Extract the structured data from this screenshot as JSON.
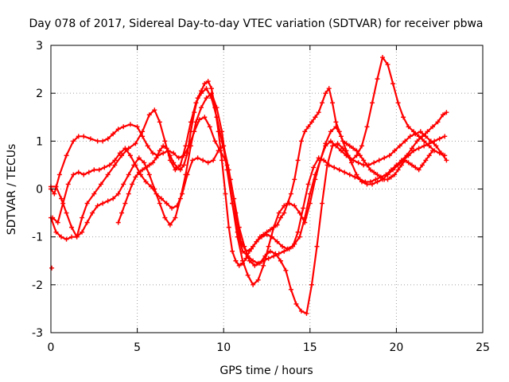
{
  "chart_data": {
    "type": "scatter",
    "title": "Day 078 of 2017, Sidereal Day-to-day VTEC variation (SDTVAR) for receiver pbwa",
    "xlabel": "GPS time / hours",
    "ylabel": "SDTVAR / TECUs",
    "xlim": [
      0,
      25
    ],
    "ylim": [
      -3,
      3
    ],
    "xticks": [
      0,
      5,
      10,
      15,
      20,
      25
    ],
    "yticks": [
      -3,
      -2,
      -1,
      0,
      1,
      2,
      3
    ],
    "xtick_labels": [
      "0",
      "5",
      "10",
      "15",
      "20",
      "25"
    ],
    "ytick_labels": [
      "-3",
      "-2",
      "-1",
      "0",
      "1",
      "2",
      "3"
    ],
    "grid": true,
    "legend": "none",
    "marker": "+",
    "color": "#ff0000",
    "series": [
      {
        "x": [
          0.0,
          0.2,
          0.5,
          0.9,
          1.3,
          1.6,
          1.9,
          2.3,
          2.7,
          3.0,
          3.3,
          3.6,
          3.9,
          4.2,
          4.6,
          5.0,
          5.3,
          5.6,
          5.9,
          6.2,
          6.5,
          6.8,
          7.1,
          7.4,
          7.7,
          8.0,
          8.3,
          8.6,
          8.9,
          9.2,
          9.5,
          9.8,
          10.1,
          10.4,
          10.7,
          11.0,
          11.3,
          11.6,
          11.9,
          12.2,
          12.5,
          12.8,
          13.1,
          13.4,
          13.7,
          14.0,
          14.3,
          14.6,
          14.9,
          15.2,
          15.5,
          15.8,
          16.1,
          16.4,
          16.7,
          17.0,
          17.3,
          17.6,
          17.9,
          18.2,
          18.5,
          18.8,
          19.1,
          19.4,
          19.7,
          20.0,
          20.3,
          20.6,
          20.9,
          21.2,
          21.5,
          21.8,
          22.1,
          22.4,
          22.7,
          22.9
        ],
        "y": [
          0.0,
          -0.1,
          0.3,
          0.7,
          1.0,
          1.1,
          1.1,
          1.05,
          1.0,
          1.0,
          1.05,
          1.15,
          1.25,
          1.3,
          1.35,
          1.3,
          1.1,
          0.9,
          0.75,
          0.7,
          0.75,
          0.8,
          0.75,
          0.65,
          0.7,
          0.9,
          1.2,
          1.45,
          1.5,
          1.3,
          1.0,
          0.8,
          0.6,
          0.2,
          -0.5,
          -1.1,
          -1.3,
          -1.25,
          -1.1,
          -1.0,
          -0.95,
          -1.0,
          -1.1,
          -1.2,
          -1.25,
          -1.2,
          -0.9,
          -0.4,
          0.1,
          0.45,
          0.65,
          0.6,
          0.5,
          0.45,
          0.4,
          0.35,
          0.3,
          0.25,
          0.2,
          0.15,
          0.15,
          0.2,
          0.25,
          0.3,
          0.4,
          0.5,
          0.6,
          0.7,
          0.85,
          1.0,
          1.1,
          1.2,
          1.3,
          1.4,
          1.55,
          1.6
        ]
      },
      {
        "x": [
          0.0,
          0.3,
          0.6,
          0.9,
          1.2,
          1.5,
          1.8,
          2.1,
          2.5,
          2.9,
          3.3,
          3.7,
          4.1,
          4.5,
          4.9,
          5.3,
          5.7,
          6.0,
          6.3,
          6.6,
          6.9,
          7.2,
          7.5,
          7.8,
          8.1,
          8.4,
          8.7,
          9.0,
          9.3,
          9.6,
          9.9,
          10.2,
          10.5,
          10.8,
          11.1,
          11.4,
          11.7,
          12.0,
          12.3,
          12.6,
          12.9,
          13.2,
          13.5,
          13.8,
          14.1,
          14.4,
          14.7,
          15.0,
          15.3,
          15.6,
          15.9,
          16.2,
          16.5,
          16.8,
          17.1,
          17.4,
          17.7,
          18.0,
          18.3,
          18.6,
          18.9,
          19.2,
          19.5,
          19.8,
          20.1,
          20.4,
          20.7,
          21.0,
          21.3,
          21.6,
          21.9,
          22.2,
          22.5,
          22.8
        ],
        "y": [
          -0.6,
          -0.9,
          -1.0,
          -1.05,
          -1.0,
          -1.0,
          -0.6,
          -0.3,
          -0.1,
          0.1,
          0.3,
          0.5,
          0.7,
          0.85,
          0.95,
          1.2,
          1.55,
          1.65,
          1.4,
          1.0,
          0.6,
          0.4,
          0.5,
          0.9,
          1.4,
          1.8,
          2.0,
          2.1,
          1.9,
          1.5,
          1.0,
          0.5,
          -0.3,
          -0.9,
          -1.3,
          -1.4,
          -1.5,
          -1.55,
          -1.5,
          -1.45,
          -1.4,
          -1.35,
          -1.3,
          -1.25,
          -1.15,
          -1.0,
          -0.6,
          -0.1,
          0.3,
          0.6,
          0.9,
          1.0,
          0.9,
          0.8,
          0.7,
          0.6,
          0.7,
          0.9,
          1.3,
          1.8,
          2.3,
          2.75,
          2.6,
          2.2,
          1.8,
          1.5,
          1.3,
          1.2,
          1.1,
          1.0,
          0.9,
          0.8,
          0.75,
          0.7
        ]
      },
      {
        "x": [
          0.0,
          0.3,
          0.6,
          0.9,
          1.2,
          1.5,
          1.8,
          2.1,
          2.4,
          2.7,
          3.0,
          3.3,
          3.6,
          3.9,
          4.2,
          4.5,
          4.8,
          5.1,
          5.4,
          5.7,
          6.0,
          6.3,
          6.6,
          6.9,
          7.2,
          7.5,
          7.8,
          8.1,
          8.4,
          8.7,
          9.0,
          9.3,
          9.6,
          9.9,
          10.2,
          10.5,
          10.8,
          11.1,
          11.4,
          11.7,
          12.0,
          12.3,
          12.6,
          12.9,
          13.2,
          13.5,
          13.8,
          14.1,
          14.4,
          14.7,
          15.0,
          15.3,
          15.6,
          15.9,
          16.2,
          16.5,
          16.8,
          17.1,
          17.4,
          17.7,
          18.0,
          18.3,
          18.6,
          18.9,
          19.2,
          19.5,
          19.8,
          20.1,
          20.4,
          20.7,
          21.0,
          21.3,
          21.6,
          21.9,
          22.2,
          22.5,
          22.8
        ],
        "y": [
          0.05,
          0.05,
          -0.2,
          -0.5,
          -0.8,
          -1.0,
          -0.9,
          -0.7,
          -0.5,
          -0.35,
          -0.3,
          -0.25,
          -0.2,
          -0.1,
          0.1,
          0.3,
          0.5,
          0.65,
          0.55,
          0.3,
          0.0,
          -0.3,
          -0.6,
          -0.75,
          -0.6,
          -0.2,
          0.3,
          0.9,
          1.4,
          1.7,
          1.9,
          2.0,
          1.7,
          1.2,
          0.4,
          -0.3,
          -1.0,
          -1.5,
          -1.8,
          -2.0,
          -1.9,
          -1.6,
          -1.2,
          -0.8,
          -0.5,
          -0.35,
          -0.3,
          -0.35,
          -0.5,
          -0.7,
          -0.3,
          0.2,
          0.6,
          0.95,
          1.2,
          1.3,
          1.1,
          0.8,
          0.55,
          0.3,
          0.15,
          0.1,
          0.1,
          0.15,
          0.2,
          0.3,
          0.4,
          0.5,
          0.6,
          0.7,
          0.8,
          0.85,
          0.9,
          0.95,
          1.0,
          1.05,
          1.1
        ]
      },
      {
        "x": [
          0.1,
          0.4,
          0.7,
          1.0,
          1.3,
          1.6,
          1.9,
          2.2,
          2.5,
          2.8,
          3.1,
          3.4,
          3.7,
          4.0,
          4.3,
          4.6,
          4.9,
          5.2,
          5.5,
          5.8,
          6.1,
          6.4,
          6.7,
          7.0,
          7.3,
          7.6,
          7.9,
          8.2,
          8.5,
          8.8,
          9.1,
          9.4,
          9.7,
          10.0,
          10.3,
          10.6,
          10.9,
          11.2,
          11.5,
          11.8,
          12.1,
          12.4,
          12.7,
          13.0,
          13.3,
          13.6,
          13.9,
          14.2,
          14.5,
          14.8,
          15.1,
          15.4,
          15.7,
          16.0,
          16.3,
          16.6,
          16.9,
          17.2,
          17.5,
          17.8,
          18.1,
          18.4,
          18.7,
          19.0,
          19.3,
          19.6,
          19.9,
          20.2,
          20.5,
          20.8,
          21.1,
          21.4,
          21.7,
          22.0,
          22.3,
          22.6,
          22.9
        ],
        "y": [
          -0.6,
          -0.7,
          -0.3,
          0.1,
          0.3,
          0.35,
          0.3,
          0.35,
          0.4,
          0.4,
          0.45,
          0.5,
          0.6,
          0.75,
          0.85,
          0.7,
          0.5,
          0.3,
          0.15,
          0.05,
          -0.1,
          -0.2,
          -0.3,
          -0.4,
          -0.35,
          -0.1,
          0.3,
          0.6,
          0.65,
          0.6,
          0.55,
          0.6,
          0.8,
          0.9,
          0.4,
          -0.2,
          -0.8,
          -1.2,
          -1.5,
          -1.6,
          -1.55,
          -1.4,
          -1.3,
          -1.35,
          -1.5,
          -1.7,
          -2.1,
          -2.4,
          -2.55,
          -2.6,
          -2.0,
          -1.2,
          -0.3,
          0.5,
          0.9,
          0.95,
          0.85,
          0.7,
          0.6,
          0.55,
          0.5,
          0.5,
          0.55,
          0.6,
          0.65,
          0.7,
          0.8,
          0.9,
          1.0,
          1.1,
          1.15,
          1.2,
          1.1,
          1.0,
          0.9,
          0.75,
          0.6
        ]
      },
      {
        "x": [
          0.05,
          3.9,
          4.1,
          4.3,
          4.5,
          4.7,
          4.9,
          5.1,
          5.3,
          5.5,
          5.7,
          5.9,
          6.1,
          6.3,
          6.5,
          6.7,
          6.9,
          7.1,
          7.3,
          7.5,
          7.7,
          7.9,
          8.1,
          8.3,
          8.5,
          8.7,
          8.9,
          9.1,
          9.3,
          9.5,
          9.7,
          9.9,
          10.1,
          10.3,
          10.5,
          10.7,
          10.9,
          11.1,
          11.3,
          11.5,
          11.7,
          11.9,
          12.1,
          12.3,
          12.5,
          12.7,
          12.9,
          13.1,
          13.3,
          13.5,
          13.7,
          13.9,
          14.1,
          14.3,
          14.5,
          14.7,
          14.9,
          15.1,
          15.3,
          15.5,
          15.7,
          15.9,
          16.1,
          16.3,
          16.5,
          16.7,
          16.9,
          17.1,
          17.3,
          17.5,
          17.7,
          17.9,
          18.1,
          18.3,
          18.5,
          18.7,
          18.9,
          19.1,
          19.3,
          19.5,
          19.7,
          19.9,
          20.1,
          20.3,
          20.5,
          20.7,
          20.9,
          21.1,
          21.3,
          21.5,
          21.7,
          21.9,
          22.1
        ],
        "y": [
          -1.65,
          -0.7,
          -0.5,
          -0.3,
          -0.1,
          0.1,
          0.25,
          0.35,
          0.4,
          0.45,
          0.5,
          0.55,
          0.65,
          0.8,
          0.9,
          0.85,
          0.7,
          0.55,
          0.45,
          0.4,
          0.5,
          0.75,
          1.2,
          1.6,
          1.9,
          2.05,
          2.2,
          2.25,
          2.1,
          1.7,
          1.2,
          0.6,
          -0.1,
          -0.8,
          -1.3,
          -1.5,
          -1.6,
          -1.55,
          -1.45,
          -1.3,
          -1.2,
          -1.1,
          -1.0,
          -0.95,
          -0.9,
          -0.85,
          -0.8,
          -0.75,
          -0.6,
          -0.5,
          -0.3,
          -0.1,
          0.2,
          0.6,
          1.0,
          1.2,
          1.3,
          1.4,
          1.5,
          1.6,
          1.8,
          2.0,
          2.1,
          1.8,
          1.4,
          1.2,
          1.0,
          0.95,
          0.9,
          0.85,
          0.8,
          0.7,
          0.6,
          0.5,
          0.4,
          0.35,
          0.3,
          0.25,
          0.2,
          0.2,
          0.25,
          0.3,
          0.4,
          0.5,
          0.6,
          0.55,
          0.5,
          0.45,
          0.4,
          0.5,
          0.6,
          0.7,
          0.8
        ]
      }
    ]
  }
}
